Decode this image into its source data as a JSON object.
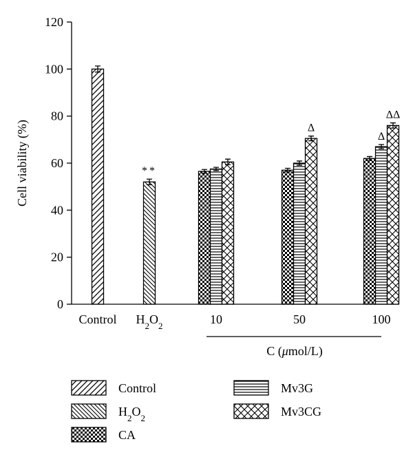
{
  "chart_data": {
    "type": "bar",
    "ylabel": "Cell viability (%)",
    "ylim": [
      0,
      120
    ],
    "yticks": [
      0,
      20,
      40,
      60,
      80,
      100,
      120
    ],
    "categories": [
      {
        "label": "Control",
        "sub": ""
      },
      {
        "label": "H",
        "sub": "2",
        "label2": "O",
        "sub2": "2"
      },
      {
        "label": "10",
        "sub": ""
      },
      {
        "label": "50",
        "sub": ""
      },
      {
        "label": "100",
        "sub": ""
      }
    ],
    "group_label": {
      "prefix": "C (",
      "mu": "μ",
      "suffix": "mol/L)"
    },
    "series": [
      {
        "name": "Control",
        "sub": "",
        "pattern": "diag-right"
      },
      {
        "name": "H",
        "sub": "2",
        "name2": "O",
        "sub2": "2",
        "pattern": "diag-left"
      },
      {
        "name": "CA",
        "sub": "",
        "pattern": "checker"
      },
      {
        "name": "Mv3G",
        "sub": "",
        "pattern": "horizontal"
      },
      {
        "name": "Mv3CG",
        "sub": "",
        "pattern": "crosshatch"
      }
    ],
    "bars": [
      {
        "category": 0,
        "series": 0,
        "value": 100,
        "error": 1.3
      },
      {
        "category": 1,
        "series": 1,
        "value": 52,
        "error": 1.2,
        "annotation": "**"
      },
      {
        "category": 2,
        "series": 2,
        "value": 56.5,
        "error": 0.8
      },
      {
        "category": 2,
        "series": 3,
        "value": 57.5,
        "error": 0.7
      },
      {
        "category": 2,
        "series": 4,
        "value": 60.5,
        "error": 1.2
      },
      {
        "category": 3,
        "series": 2,
        "value": 57,
        "error": 0.8
      },
      {
        "category": 3,
        "series": 3,
        "value": 60,
        "error": 0.9
      },
      {
        "category": 3,
        "series": 4,
        "value": 70.5,
        "error": 1.0,
        "annotation": "Δ"
      },
      {
        "category": 4,
        "series": 2,
        "value": 62,
        "error": 0.8
      },
      {
        "category": 4,
        "series": 3,
        "value": 67,
        "error": 0.9,
        "annotation": "Δ"
      },
      {
        "category": 4,
        "series": 4,
        "value": 76,
        "error": 1.1,
        "annotation": "ΔΔ"
      }
    ],
    "legend": {
      "placement": "bottom",
      "columns": 2
    }
  }
}
